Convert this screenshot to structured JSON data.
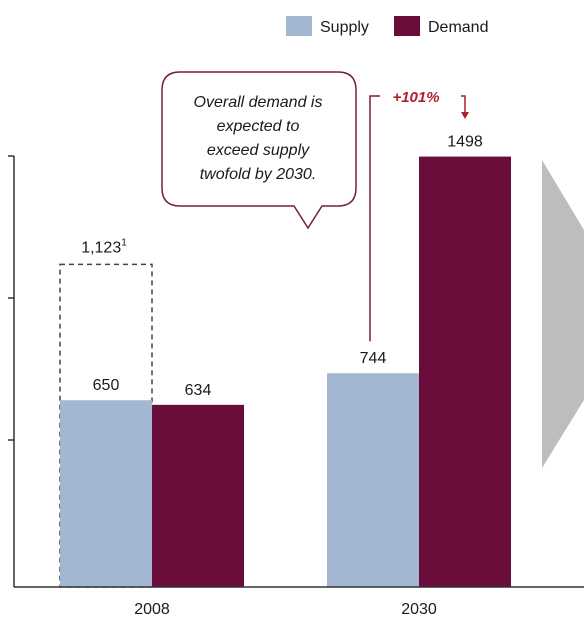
{
  "chart_data": {
    "type": "bar",
    "categories": [
      "2008",
      "2030"
    ],
    "series": [
      {
        "name": "Supply",
        "values": [
          650,
          744
        ]
      },
      {
        "name": "Demand",
        "values": [
          634,
          1498
        ]
      }
    ],
    "data_labels": [
      [
        "650",
        "744"
      ],
      [
        "634",
        "1498"
      ]
    ],
    "overlay": {
      "category": "2008",
      "value": 1123,
      "label": "1,123",
      "superscript": "1",
      "style": "dashed-outline"
    },
    "ylim": [
      0,
      1500
    ],
    "grid": false,
    "legend": "top-right",
    "colors": {
      "Supply": "#a3b6d2",
      "Demand": "#6a0d3a",
      "axis": "#333333",
      "callout_border": "#7a1c3e",
      "growth_text": "#b01e2e",
      "chevron": "#bdbdbd"
    },
    "callout": {
      "lines": [
        "Overall demand is",
        "expected to",
        "exceed supply",
        "twofold by 2030."
      ]
    },
    "growth_annotation": {
      "label": "+101%",
      "from_category": "2030",
      "from_series": "Supply",
      "to_series": "Demand"
    }
  }
}
